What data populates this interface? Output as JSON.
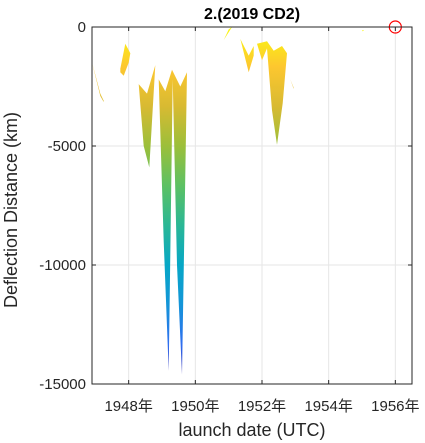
{
  "chart_data": {
    "type": "area",
    "title": "2.(2019 CD2)",
    "xlabel": "launch date (UTC)",
    "ylabel": "Deflection Distance (km)",
    "xlim": [
      1946.9,
      1956.5
    ],
    "ylim": [
      -15000,
      0
    ],
    "xticks": [
      1948,
      1950,
      1952,
      1954,
      1956
    ],
    "xtick_labels": [
      "1948年",
      "1950年",
      "1952年",
      "1954年",
      "1956年"
    ],
    "yticks": [
      0,
      -5000,
      -10000,
      -15000
    ],
    "ytick_labels": [
      "0",
      "-5000",
      "-10000",
      "-15000"
    ],
    "grid": true,
    "colormap": [
      "#3e26a8",
      "#2f6ef0",
      "#1495d8",
      "#06a7c6",
      "#2ab795",
      "#5cc163",
      "#9cbf3a",
      "#d8ba32",
      "#fdc72f",
      "#f9fb0e"
    ],
    "lobes": [
      {
        "upper": [
          [
            1946.9,
            -1500
          ],
          [
            1947.0,
            -2000
          ],
          [
            1947.15,
            -2800
          ],
          [
            1947.25,
            -3100
          ]
        ],
        "lower": [
          [
            1946.9,
            -1500
          ],
          [
            1947.0,
            -2050
          ],
          [
            1947.15,
            -2900
          ],
          [
            1947.25,
            -3150
          ]
        ]
      },
      {
        "upper": [
          [
            1947.75,
            -1750
          ],
          [
            1947.9,
            -700
          ],
          [
            1948.05,
            -1100
          ]
        ],
        "lower": [
          [
            1947.75,
            -1900
          ],
          [
            1947.85,
            -2050
          ],
          [
            1948.0,
            -1500
          ],
          [
            1948.05,
            -1100
          ]
        ]
      },
      {
        "upper": [
          [
            1948.3,
            -2400
          ],
          [
            1948.55,
            -2800
          ],
          [
            1948.8,
            -1600
          ]
        ],
        "lower": [
          [
            1948.3,
            -2400
          ],
          [
            1948.45,
            -5000
          ],
          [
            1948.62,
            -5900
          ],
          [
            1948.8,
            -1600
          ]
        ]
      },
      {
        "upper": [
          [
            1948.9,
            -2200
          ],
          [
            1949.1,
            -2700
          ],
          [
            1949.3,
            -1800
          ],
          [
            1949.55,
            -2500
          ],
          [
            1949.75,
            -1900
          ]
        ],
        "lower": [
          [
            1948.9,
            -2200
          ],
          [
            1949.05,
            -9000
          ],
          [
            1949.2,
            -14450
          ],
          [
            1949.32,
            -2200
          ],
          [
            1949.45,
            -10000
          ],
          [
            1949.6,
            -14600
          ],
          [
            1949.75,
            -1900
          ]
        ]
      },
      {
        "upper": [
          [
            1950.85,
            -550
          ],
          [
            1951.0,
            -100
          ],
          [
            1951.1,
            0
          ]
        ],
        "lower": [
          [
            1950.85,
            -550
          ],
          [
            1951.1,
            0
          ]
        ]
      },
      {
        "upper": [
          [
            1951.35,
            -500
          ],
          [
            1951.6,
            -1200
          ],
          [
            1951.75,
            -800
          ]
        ],
        "lower": [
          [
            1951.35,
            -500
          ],
          [
            1951.6,
            -1900
          ],
          [
            1951.75,
            -1200
          ]
        ]
      },
      {
        "upper": [
          [
            1951.85,
            -700
          ],
          [
            1952.15,
            -600
          ],
          [
            1952.35,
            -1000
          ],
          [
            1952.6,
            -800
          ],
          [
            1952.75,
            -1100
          ]
        ],
        "lower": [
          [
            1951.85,
            -700
          ],
          [
            1952.0,
            -1400
          ],
          [
            1952.15,
            -900
          ],
          [
            1952.3,
            -3500
          ],
          [
            1952.45,
            -4950
          ],
          [
            1952.62,
            -3200
          ],
          [
            1952.75,
            -1100
          ]
        ]
      },
      {
        "upper": [
          [
            1952.85,
            -2200
          ],
          [
            1952.95,
            -2550
          ]
        ],
        "lower": [
          [
            1952.85,
            -2200
          ],
          [
            1952.95,
            -2600
          ]
        ]
      },
      {
        "upper": [
          [
            1955.0,
            -150
          ],
          [
            1955.05,
            -120
          ]
        ],
        "lower": [
          [
            1955.0,
            -180
          ],
          [
            1955.05,
            -150
          ]
        ]
      }
    ],
    "marker": {
      "x": 1956.0,
      "y": 0,
      "shape": "circle",
      "color": "#ff0000"
    }
  }
}
